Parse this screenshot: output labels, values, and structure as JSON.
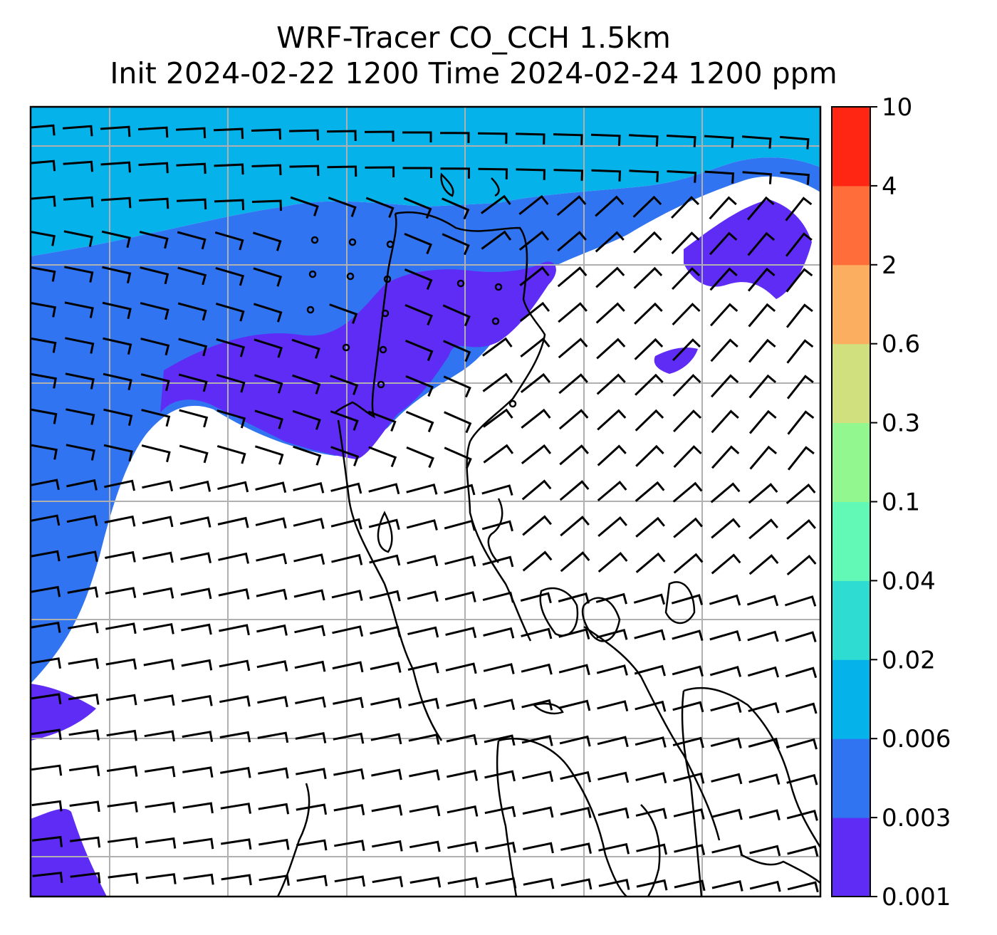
{
  "title": {
    "line1": "WRF-Tracer CO_CCH 1.5km",
    "line2": "Init 2024-02-22 1200 Time 2024-02-24 1200 ppm"
  },
  "colorbar": {
    "levels": [
      "0.001",
      "0.003",
      "0.006",
      "0.02",
      "0.04",
      "0.1",
      "0.3",
      "0.6",
      "2",
      "4",
      "10"
    ],
    "colors": [
      "#5f2cf6",
      "#3174f1",
      "#05b3ea",
      "#2fdcd2",
      "#62f9b6",
      "#93f78f",
      "#d0e07e",
      "#fcae60",
      "#ff6e3a",
      "#ff2614"
    ]
  },
  "map": {
    "background": "#ffffff",
    "gridlines": "#b0b0b0",
    "coastline": "#000000",
    "wind_barbs": "#000000"
  }
}
